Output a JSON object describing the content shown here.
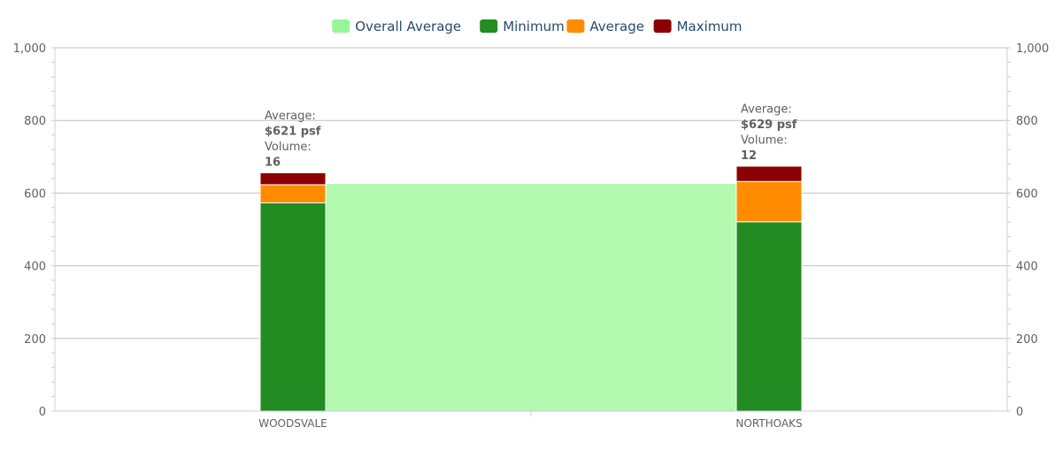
{
  "chart_data": {
    "type": "bar",
    "categories": [
      "WOODSVALE",
      "NORTHOAKS"
    ],
    "ylim": [
      0,
      1000
    ],
    "y_ticks": [
      0,
      200,
      400,
      600,
      800,
      1000
    ],
    "y_tick_labels": [
      "0",
      "200",
      "400",
      "600",
      "800",
      "1,000"
    ],
    "grid": true,
    "legend_position": "top-center",
    "overall_average": {
      "name": "Overall Average",
      "value": 625,
      "color": "#b3f9b0",
      "legend_color": "#9af59a"
    },
    "series": [
      {
        "name": "Minimum",
        "color": "#228b22",
        "values": [
          573,
          521
        ]
      },
      {
        "name": "Average",
        "color": "#ff8c00",
        "values": [
          50,
          111
        ]
      },
      {
        "name": "Maximum",
        "color": "#8b0000",
        "values": [
          33,
          42
        ]
      }
    ],
    "annotations": [
      {
        "line1": "Average:",
        "line2": "$621 psf",
        "line3": "Volume:",
        "line4": "16"
      },
      {
        "line1": "Average:",
        "line2": "$629 psf",
        "line3": "Volume:",
        "line4": "12"
      }
    ]
  }
}
